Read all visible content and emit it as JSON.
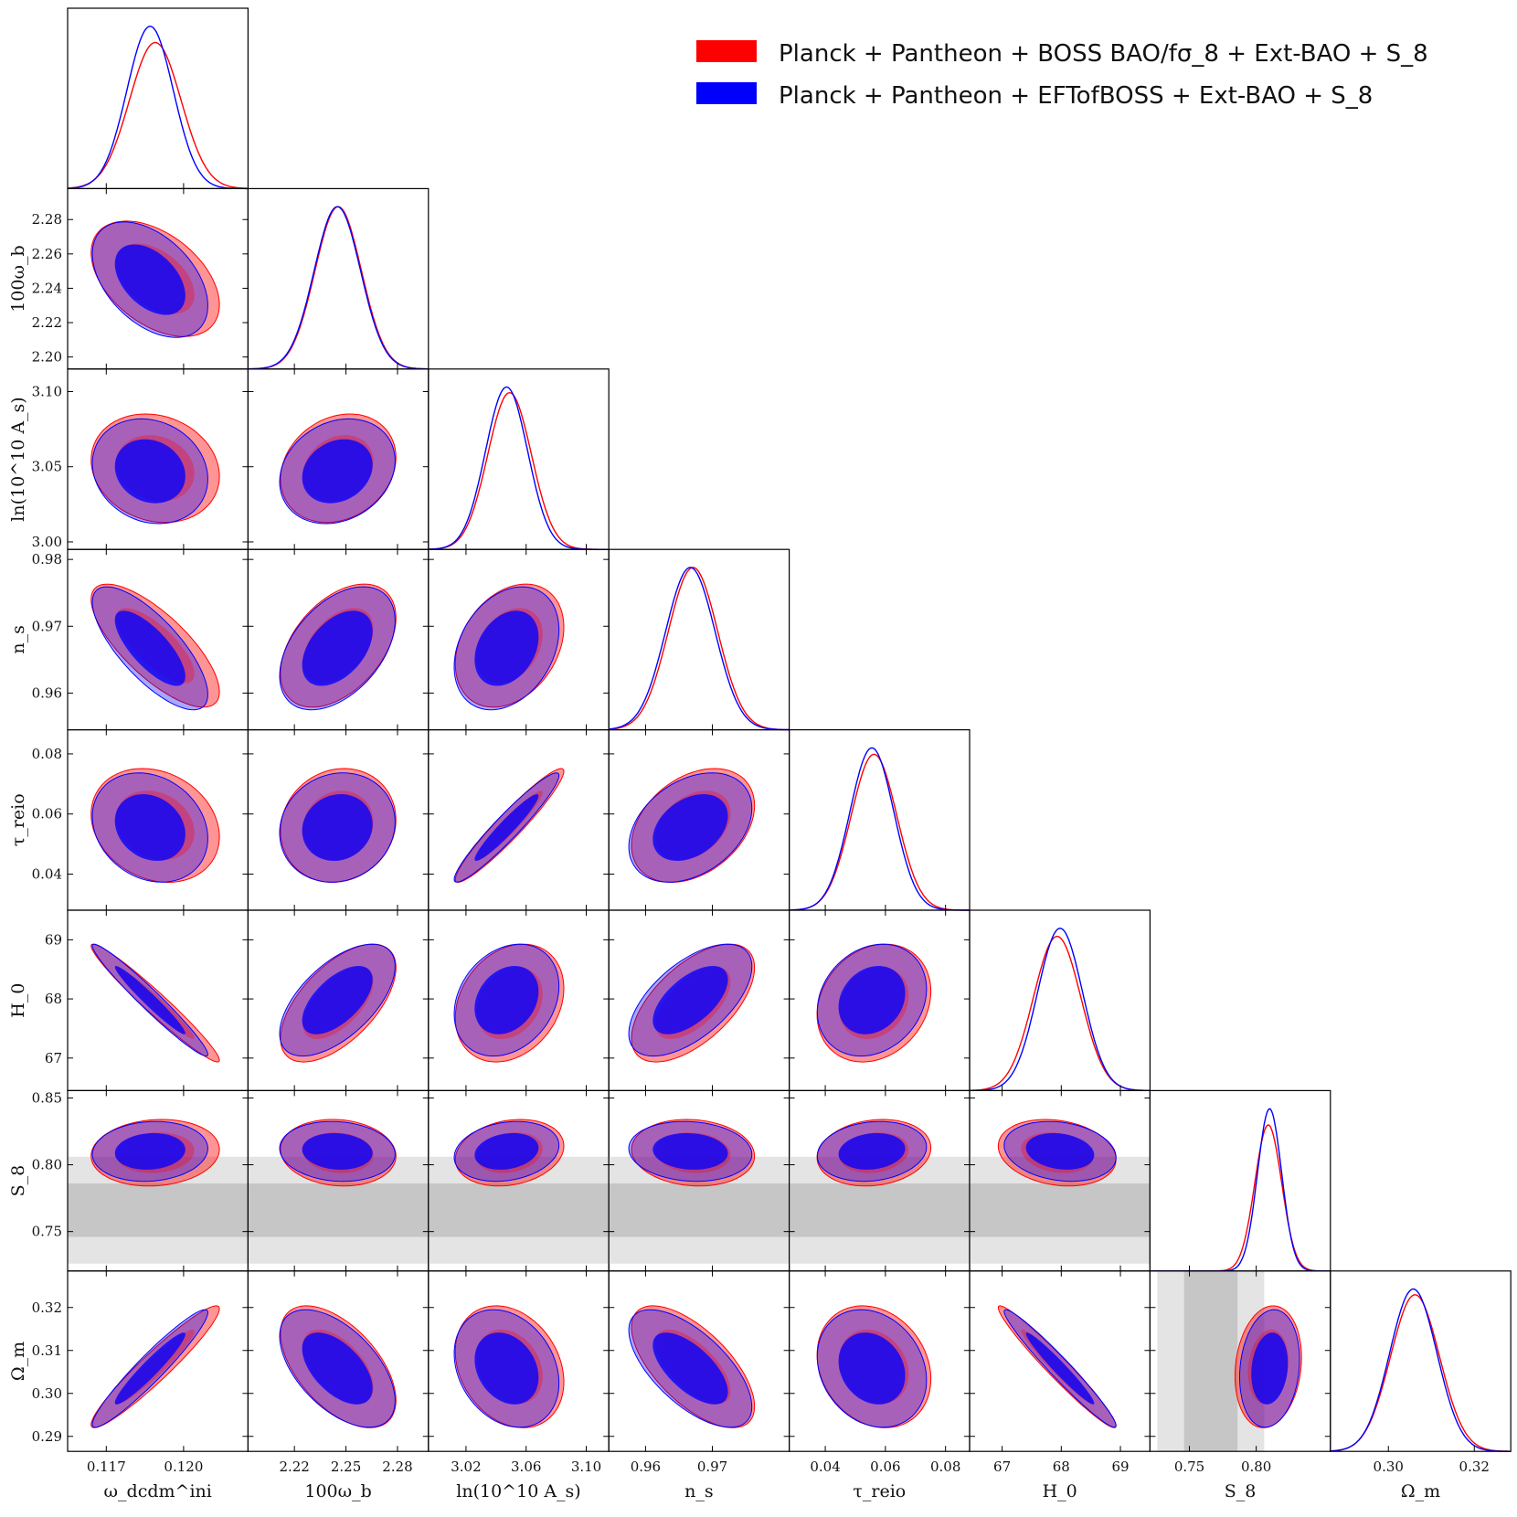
{
  "chart_data": {
    "type": "corner",
    "params": [
      {
        "key": "omega_dcdm_ini",
        "label": "ω_dcdm^ini",
        "range": [
          0.1155,
          0.1225
        ],
        "ticks": [
          0.117,
          0.12
        ],
        "tick_labels": [
          "0.117",
          "0.120"
        ],
        "mean_red": 0.1189,
        "mean_blue": 0.1187,
        "sd_red": 0.001,
        "sd_blue": 0.0009
      },
      {
        "key": "omega_b",
        "label": "100ω_b",
        "range": [
          2.193,
          2.298
        ],
        "ticks": [
          2.2,
          2.22,
          2.24,
          2.26,
          2.28
        ],
        "tick_labels": [
          "2.20",
          "2.22",
          "2.24",
          "2.26",
          "2.28"
        ],
        "x_ticks": [
          2.22,
          2.25,
          2.28
        ],
        "x_tick_labels": [
          "2.22",
          "2.25",
          "2.28"
        ],
        "mean_red": 2.2455,
        "mean_blue": 2.245,
        "sd_red": 0.0135,
        "sd_blue": 0.0135
      },
      {
        "key": "lnAs",
        "label": "ln(10^10 A_s)",
        "range": [
          2.995,
          3.115
        ],
        "ticks": [
          3.0,
          3.05,
          3.1
        ],
        "tick_labels": [
          "3.00",
          "3.05",
          "3.10"
        ],
        "x_ticks": [
          3.02,
          3.06,
          3.1
        ],
        "x_tick_labels": [
          "3.02",
          "3.06",
          "3.10"
        ],
        "mean_red": 3.049,
        "mean_blue": 3.047,
        "sd_red": 0.0145,
        "sd_blue": 0.014
      },
      {
        "key": "ns",
        "label": "n_s",
        "range": [
          0.9545,
          0.9815
        ],
        "ticks": [
          0.96,
          0.97,
          0.98
        ],
        "tick_labels": [
          "0.96",
          "0.97",
          "0.98"
        ],
        "x_ticks": [
          0.96,
          0.97
        ],
        "x_tick_labels": [
          "0.96",
          "0.97"
        ],
        "mean_red": 0.9671,
        "mean_blue": 0.9667,
        "sd_red": 0.0037,
        "sd_blue": 0.0037
      },
      {
        "key": "tau",
        "label": "τ_reio",
        "range": [
          0.028,
          0.088
        ],
        "ticks": [
          0.04,
          0.06,
          0.08
        ],
        "tick_labels": [
          "0.04",
          "0.06",
          "0.08"
        ],
        "mean_red": 0.0562,
        "mean_blue": 0.0555,
        "sd_red": 0.0076,
        "sd_blue": 0.0073
      },
      {
        "key": "H0",
        "label": "H_0",
        "range": [
          66.45,
          69.5
        ],
        "ticks": [
          67,
          68,
          69
        ],
        "tick_labels": [
          "67",
          "68",
          "69"
        ],
        "mean_red": 67.93,
        "mean_blue": 67.98,
        "sd_red": 0.4,
        "sd_blue": 0.38
      },
      {
        "key": "S8",
        "label": "S_8",
        "range": [
          0.7205,
          0.8555
        ],
        "ticks": [
          0.75,
          0.8,
          0.85
        ],
        "tick_labels": [
          "0.75",
          "0.80",
          "0.85"
        ],
        "x_ticks": [
          0.75,
          0.8
        ],
        "x_tick_labels": [
          "0.75",
          "0.80"
        ],
        "mean_red": 0.809,
        "mean_blue": 0.81,
        "sd_red": 0.01,
        "sd_blue": 0.009
      },
      {
        "key": "Om",
        "label": "Ω_m",
        "range": [
          0.2865,
          0.3285
        ],
        "ticks": [
          0.29,
          0.3,
          0.31,
          0.32
        ],
        "tick_labels": [
          "0.29",
          "0.30",
          "0.31",
          "0.32"
        ],
        "x_ticks": [
          0.3,
          0.32
        ],
        "x_tick_labels": [
          "0.30",
          "0.32"
        ],
        "mean_red": 0.3062,
        "mean_blue": 0.3058,
        "sd_red": 0.0057,
        "sd_blue": 0.0055
      }
    ],
    "series": [
      {
        "name": "Planck + Pantheon + BOSS BAO/fσ_8 + Ext-BAO + S_8",
        "color": "#ff0000"
      },
      {
        "name": "Planck + Pantheon + EFTofBOSS + Ext-BAO + S_8",
        "color": "#0000ff"
      }
    ],
    "correlations": {
      "omega_dcdm_ini": {
        "omega_b": -0.45,
        "lnAs": -0.15,
        "ns": -0.75,
        "tau": -0.2,
        "H0": -0.97,
        "S8": 0.1,
        "Om": 0.95
      },
      "omega_b": {
        "lnAs": 0.2,
        "ns": 0.45,
        "tau": 0.1,
        "H0": 0.6,
        "S8": -0.1,
        "Om": -0.55
      },
      "lnAs": {
        "ns": 0.3,
        "tau": 0.95,
        "H0": 0.25,
        "S8": 0.2,
        "Om": -0.25
      },
      "ns": {
        "tau": 0.35,
        "H0": 0.6,
        "S8": -0.1,
        "Om": -0.65
      },
      "tau": {
        "H0": 0.2,
        "S8": 0.15,
        "Om": -0.2
      },
      "H0": {
        "S8": -0.2,
        "Om": -0.97
      },
      "S8": {
        "Om": 0.15
      }
    },
    "prior_band": {
      "param": "S8",
      "mean": 0.766,
      "sigma": 0.02
    },
    "legend_position": "top-right"
  },
  "legend": {
    "red_label": "Planck + Pantheon + BOSS BAO/fσ_8 + Ext-BAO + S_8",
    "blue_label": "Planck + Pantheon + EFTofBOSS + Ext-BAO + S_8",
    "red_color": "#ff0000",
    "blue_color": "#0000ff"
  }
}
